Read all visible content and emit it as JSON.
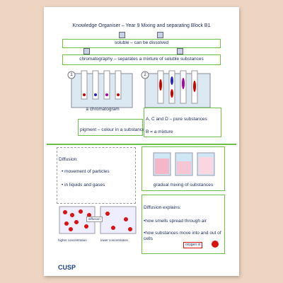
{
  "title": "Knowledge Organiser – Year 9 Mixing and separating Block B1",
  "soluble": "soluble – can be dissolved",
  "chromatography": "chromatography – separates a mixture of soluble substances",
  "step_numbers": [
    "1",
    "2"
  ],
  "chromatogram_label": "a chromatogram",
  "pigment": "pigment – colour in a substance",
  "pure": "A, C and D – pure substances",
  "mixture": "B = a mixture",
  "diffusion": {
    "heading": "Diffusion:",
    "bullets": [
      "movement of particles",
      "in liquids and gases"
    ]
  },
  "diffusion_diagram": {
    "label": "diffusion",
    "left": "higher concentration",
    "right": "lower concentration"
  },
  "gradual": "gradual mixing of substances",
  "explains": {
    "heading": "Diffusion explains:",
    "lines": [
      "•how smells spread through air",
      "•how substances move into and out of cells"
    ],
    "callout": "oxygen in"
  },
  "logo": "CUSP"
}
